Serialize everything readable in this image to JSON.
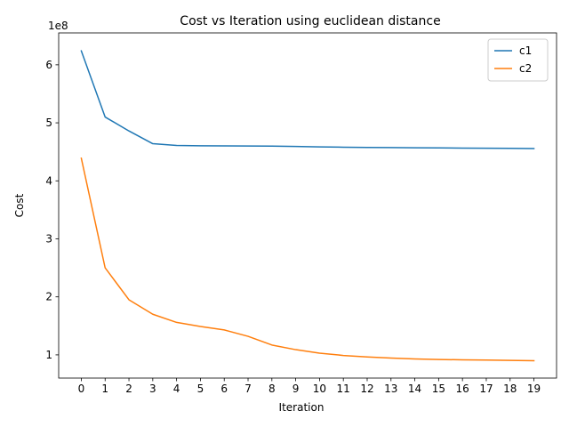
{
  "chart_data": {
    "type": "line",
    "title": "Cost vs Iteration using euclidean distance",
    "xlabel": "Iteration",
    "ylabel": "Cost",
    "y_scale_label": "1e8",
    "x": [
      0,
      1,
      2,
      3,
      4,
      5,
      6,
      7,
      8,
      9,
      10,
      11,
      12,
      13,
      14,
      15,
      16,
      17,
      18,
      19
    ],
    "xticks": [
      "0",
      "1",
      "2",
      "3",
      "4",
      "5",
      "6",
      "7",
      "8",
      "9",
      "10",
      "11",
      "12",
      "13",
      "14",
      "15",
      "16",
      "17",
      "18",
      "19"
    ],
    "yticks": [
      "1",
      "2",
      "3",
      "4",
      "5",
      "6"
    ],
    "xlim": [
      -0.95,
      19.95
    ],
    "ylim": [
      0.6,
      6.55
    ],
    "grid": false,
    "legend_position": "top-right",
    "series": [
      {
        "name": "c1",
        "color": "#1f77b4",
        "values": [
          6.24,
          5.1,
          4.86,
          4.64,
          4.61,
          4.605,
          4.603,
          4.6,
          4.598,
          4.592,
          4.586,
          4.58,
          4.576,
          4.573,
          4.57,
          4.568,
          4.565,
          4.562,
          4.56,
          4.557
        ]
      },
      {
        "name": "c2",
        "color": "#ff7f0e",
        "values": [
          4.39,
          2.5,
          1.95,
          1.7,
          1.56,
          1.49,
          1.43,
          1.32,
          1.17,
          1.09,
          1.03,
          0.99,
          0.965,
          0.945,
          0.93,
          0.92,
          0.915,
          0.91,
          0.905,
          0.9
        ]
      }
    ]
  }
}
